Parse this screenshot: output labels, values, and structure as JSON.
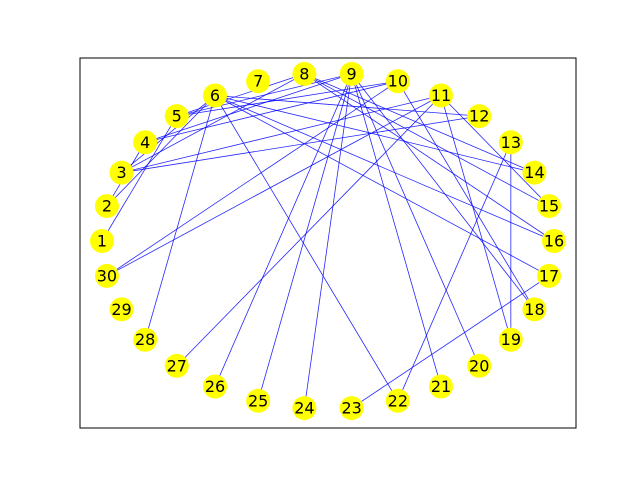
{
  "graph": {
    "node_color": "#ffff00",
    "edge_color": "#0000ff",
    "nodes": [
      "1",
      "2",
      "3",
      "4",
      "5",
      "6",
      "7",
      "8",
      "9",
      "10",
      "11",
      "12",
      "13",
      "14",
      "15",
      "16",
      "17",
      "18",
      "19",
      "20",
      "21",
      "22",
      "23",
      "24",
      "25",
      "26",
      "27",
      "28",
      "29",
      "30"
    ],
    "edges": [
      [
        "1",
        "5"
      ],
      [
        "2",
        "6"
      ],
      [
        "3",
        "8"
      ],
      [
        "3",
        "11"
      ],
      [
        "3",
        "12"
      ],
      [
        "4",
        "9"
      ],
      [
        "4",
        "10"
      ],
      [
        "5",
        "9"
      ],
      [
        "5",
        "10"
      ],
      [
        "6",
        "12"
      ],
      [
        "6",
        "16"
      ],
      [
        "6",
        "17"
      ],
      [
        "6",
        "22"
      ],
      [
        "6",
        "28"
      ],
      [
        "8",
        "14"
      ],
      [
        "8",
        "15"
      ],
      [
        "9",
        "18"
      ],
      [
        "9",
        "20"
      ],
      [
        "9",
        "21"
      ],
      [
        "9",
        "24"
      ],
      [
        "9",
        "25"
      ],
      [
        "9",
        "26"
      ],
      [
        "10",
        "18"
      ],
      [
        "10",
        "30"
      ],
      [
        "11",
        "15"
      ],
      [
        "11",
        "19"
      ],
      [
        "11",
        "27"
      ],
      [
        "11",
        "30"
      ],
      [
        "13",
        "19"
      ],
      [
        "17",
        "23"
      ],
      [
        "13",
        "22"
      ],
      [
        "6",
        "14"
      ],
      [
        "5",
        "8"
      ],
      [
        "3",
        "6"
      ],
      [
        "2",
        "4"
      ],
      [
        "8",
        "16"
      ]
    ]
  }
}
